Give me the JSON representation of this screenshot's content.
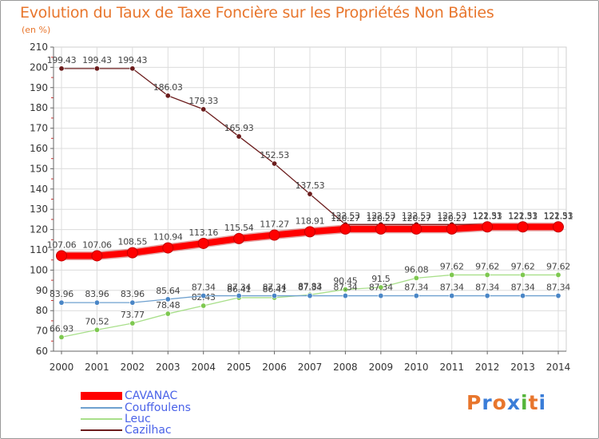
{
  "title": "Evolution du Taux de Taxe Foncière sur les Propriétés Non Bâties",
  "subtitle": "(en %)",
  "logo": {
    "text": "Proxiti",
    "letters": [
      "P",
      "r",
      "o",
      "x",
      "i",
      "t",
      "i"
    ],
    "colors": [
      "#e8762d",
      "#3a7dd8",
      "#e8762d",
      "#3a7dd8",
      "#55b53a",
      "#e8762d",
      "#3a7dd8"
    ]
  },
  "chart_data": {
    "type": "line",
    "title": "Evolution du Taux de Taxe Foncière sur les Propriétés Non Bâties",
    "ylabel": "(en %)",
    "xlabel": "",
    "ylim": [
      60,
      210
    ],
    "yticks": [
      "60",
      "70",
      "80",
      "90",
      "100",
      "110",
      "120",
      "130",
      "140",
      "150",
      "160",
      "170",
      "180",
      "190",
      "200",
      "210"
    ],
    "categories": [
      "2000",
      "2001",
      "2002",
      "2003",
      "2004",
      "2005",
      "2006",
      "2007",
      "2008",
      "2009",
      "2010",
      "2011",
      "2012",
      "2013",
      "2014"
    ],
    "grid": true,
    "legend_position": "bottom-left",
    "series": [
      {
        "name": "Cazilhac",
        "color": "#6b1c1c",
        "marker": "#6b1c1c",
        "values": [
          199.43,
          199.43,
          199.43,
          186.03,
          179.33,
          165.93,
          152.53,
          137.53,
          122.53,
          122.53,
          122.53,
          122.53,
          122.53,
          122.53,
          122.53
        ],
        "labels": [
          "199.43",
          "199.43",
          "199.43",
          "186.03",
          "179.33",
          "165.93",
          "152.53",
          "137.53",
          "122.53",
          "122.53",
          "122.53",
          "122.53",
          "122.53",
          "122.53",
          "122.53"
        ]
      },
      {
        "name": "Leuc",
        "color": "#a8df8a",
        "marker": "#7ec850",
        "values": [
          66.93,
          70.52,
          73.77,
          78.48,
          82.43,
          86.41,
          86.41,
          87.83,
          90.45,
          91.5,
          96.08,
          97.62,
          97.62,
          97.62,
          97.62
        ],
        "labels": [
          "66.93",
          "70.52",
          "73.77",
          "78.48",
          "82.43",
          "86.41",
          "86.41",
          "87.83",
          "90.45",
          "91.5",
          "96.08",
          "97.62",
          "97.62",
          "97.62",
          "97.62"
        ]
      },
      {
        "name": "Couffoulens",
        "color": "#6ea0cf",
        "marker": "#4a86c6",
        "values": [
          83.96,
          83.96,
          83.96,
          85.64,
          87.34,
          87.34,
          87.34,
          87.34,
          87.34,
          87.34,
          87.34,
          87.34,
          87.34,
          87.34,
          87.34
        ],
        "labels": [
          "83.96",
          "83.96",
          "83.96",
          "85.64",
          "87.34",
          "87.34",
          "87.34",
          "87.34",
          "87.34",
          "87.34",
          "87.34",
          "87.34",
          "87.34",
          "87.34",
          "87.34"
        ]
      },
      {
        "name": "CAVANAC",
        "color": "#ff0000",
        "marker": "#ff0000",
        "values": [
          107.06,
          107.06,
          108.55,
          110.94,
          113.16,
          115.54,
          117.27,
          118.91,
          120.27,
          120.27,
          120.27,
          120.27,
          121.31,
          121.31,
          121.31
        ],
        "labels": [
          "107.06",
          "107.06",
          "108.55",
          "110.94",
          "113.16",
          "115.54",
          "117.27",
          "118.91",
          "120.27",
          "120.27",
          "120.27",
          "120.27",
          "121.31",
          "121.31",
          "121.31"
        ]
      }
    ],
    "legend": [
      {
        "name": "CAVANAC",
        "color": "#ff0000"
      },
      {
        "name": "Couffoulens",
        "color": "#6ea0cf"
      },
      {
        "name": "Leuc",
        "color": "#a8df8a"
      },
      {
        "name": "Cazilhac",
        "color": "#6b1c1c"
      }
    ]
  }
}
